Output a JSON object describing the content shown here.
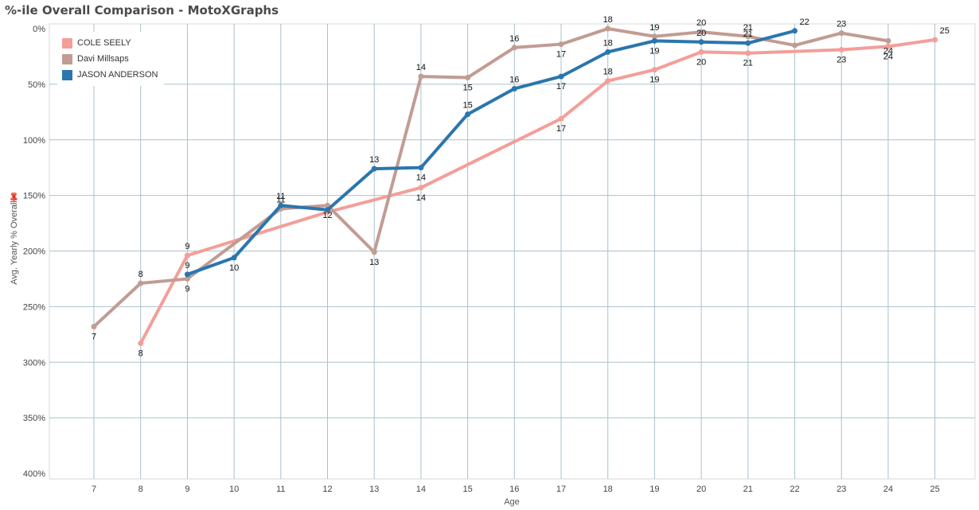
{
  "title": "%-ile Overall Comparison - MotoXGraphs",
  "chart_data": {
    "type": "line",
    "xlabel": "Age",
    "ylabel": "Avg. Yearly % Overall",
    "x_ticks": [
      7,
      8,
      9,
      10,
      11,
      12,
      13,
      14,
      15,
      16,
      17,
      18,
      19,
      20,
      21,
      22,
      23,
      24,
      25
    ],
    "y_ticks": [
      "0%",
      "50%",
      "100%",
      "150%",
      "200%",
      "250%",
      "300%",
      "350%",
      "400%"
    ],
    "ylim": [
      0,
      400
    ],
    "y_reversed": true,
    "grid": true,
    "legend_position": "top-left",
    "series": [
      {
        "name": "COLE SEELY",
        "color": "#f49e99",
        "points": [
          {
            "x": 8,
            "y": 283,
            "label": "8"
          },
          {
            "x": 9,
            "y": 204,
            "label": "9"
          },
          {
            "x": 12,
            "y": 165
          },
          {
            "x": 14,
            "y": 143,
            "label": "14"
          },
          {
            "x": 17,
            "y": 81,
            "label": "17"
          },
          {
            "x": 18,
            "y": 47,
            "label": "18"
          },
          {
            "x": 19,
            "y": 37,
            "label": "19"
          },
          {
            "x": 20,
            "y": 21,
            "label": "20"
          },
          {
            "x": 21,
            "y": 22,
            "label": "21"
          },
          {
            "x": 23,
            "y": 19,
            "label": "23"
          },
          {
            "x": 24,
            "y": 16,
            "label": "24"
          },
          {
            "x": 25,
            "y": 10,
            "label": "25"
          }
        ]
      },
      {
        "name": "Davi Millsaps",
        "color": "#c19c93",
        "points": [
          {
            "x": 7,
            "y": 268,
            "label": "7"
          },
          {
            "x": 8,
            "y": 229,
            "label": "8"
          },
          {
            "x": 9,
            "y": 225,
            "label": "9"
          },
          {
            "x": 11,
            "y": 162,
            "label": "11"
          },
          {
            "x": 12,
            "y": 159,
            "label": "12"
          },
          {
            "x": 13,
            "y": 201,
            "label": "13"
          },
          {
            "x": 14,
            "y": 43,
            "label": "14"
          },
          {
            "x": 15,
            "y": 44,
            "label": "15"
          },
          {
            "x": 16,
            "y": 17,
            "label": "16"
          },
          {
            "x": 17,
            "y": 14,
            "label": "17"
          },
          {
            "x": 18,
            "y": 0,
            "label": "18"
          },
          {
            "x": 19,
            "y": 7,
            "label": "19"
          },
          {
            "x": 20,
            "y": 3,
            "label": "20"
          },
          {
            "x": 21,
            "y": 7,
            "label": "21"
          },
          {
            "x": 22,
            "y": 15
          },
          {
            "x": 23,
            "y": 4,
            "label": "23"
          },
          {
            "x": 24,
            "y": 11,
            "label": "24"
          }
        ]
      },
      {
        "name": "JASON ANDERSON",
        "color": "#2a76ad",
        "points": [
          {
            "x": 9,
            "y": 221,
            "label": "9"
          },
          {
            "x": 10,
            "y": 206,
            "label": "10"
          },
          {
            "x": 11,
            "y": 159,
            "label": "11"
          },
          {
            "x": 12,
            "y": 163
          },
          {
            "x": 13,
            "y": 126,
            "label": "13"
          },
          {
            "x": 14,
            "y": 125,
            "label": "14"
          },
          {
            "x": 15,
            "y": 77,
            "label": "15"
          },
          {
            "x": 16,
            "y": 54,
            "label": "16"
          },
          {
            "x": 17,
            "y": 43,
            "label": "17"
          },
          {
            "x": 18,
            "y": 21,
            "label": "18"
          },
          {
            "x": 19,
            "y": 11,
            "label": "19"
          },
          {
            "x": 20,
            "y": 12,
            "label": "20"
          },
          {
            "x": 21,
            "y": 13,
            "label": "21"
          },
          {
            "x": 22,
            "y": 2,
            "label": "22"
          }
        ]
      }
    ]
  }
}
